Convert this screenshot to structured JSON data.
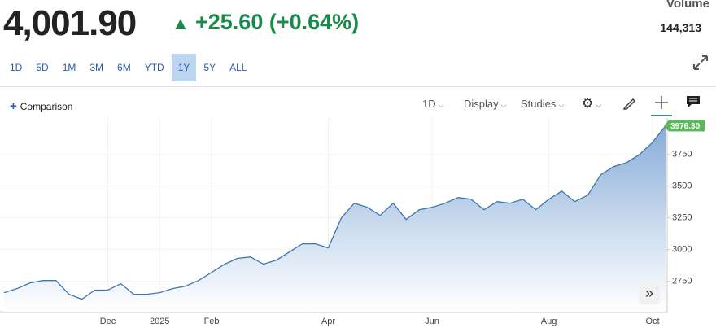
{
  "header": {
    "price": "4,001.90",
    "change": "+25.60 (+0.64%)",
    "volume_label": "Volume",
    "volume": "144,313"
  },
  "ranges": [
    "1D",
    "5D",
    "1M",
    "3M",
    "6M",
    "YTD",
    "1Y",
    "5Y",
    "ALL"
  ],
  "active_range": "1Y",
  "toolbar": {
    "comparison": "Comparison",
    "interval": "1D",
    "display": "Display",
    "studies": "Studies"
  },
  "chart_data": {
    "type": "area",
    "categories": [
      null,
      null,
      null,
      null,
      null,
      null,
      null,
      null,
      "Dec",
      null,
      null,
      null,
      "2025",
      null,
      null,
      null,
      "Feb",
      null,
      null,
      null,
      null,
      null,
      null,
      null,
      null,
      "Apr",
      null,
      null,
      null,
      null,
      null,
      null,
      null,
      "Jun",
      null,
      null,
      null,
      null,
      null,
      null,
      null,
      null,
      "Aug",
      null,
      null,
      null,
      null,
      null,
      null,
      null,
      "Oct",
      null
    ],
    "values": [
      2660,
      2692,
      2737,
      2756,
      2756,
      2647,
      2609,
      2680,
      2680,
      2731,
      2647,
      2647,
      2660,
      2692,
      2712,
      2756,
      2820,
      2885,
      2930,
      2942,
      2885,
      2917,
      2981,
      3045,
      3045,
      3013,
      3250,
      3365,
      3333,
      3269,
      3365,
      3237,
      3314,
      3333,
      3365,
      3410,
      3397,
      3314,
      3378,
      3365,
      3397,
      3314,
      3397,
      3461,
      3378,
      3429,
      3590,
      3654,
      3686,
      3750,
      3846,
      3976.3
    ],
    "value_labels": [
      null,
      null,
      null,
      null,
      null,
      null,
      null,
      null,
      null,
      null,
      null,
      null,
      null,
      null,
      null,
      null,
      null,
      null,
      null,
      null,
      null,
      null,
      null,
      null,
      null,
      null,
      null,
      null,
      null,
      null,
      null,
      null,
      null,
      null,
      null,
      null,
      null,
      null,
      null,
      null,
      null,
      null,
      null,
      null,
      null,
      null,
      null,
      null,
      null,
      null,
      null,
      "3976.30"
    ],
    "color": "#3b76b3",
    "ylim": [
      2510,
      4005
    ],
    "yticks": [
      2750,
      3000,
      3250,
      3500,
      3750
    ],
    "grid": true
  }
}
